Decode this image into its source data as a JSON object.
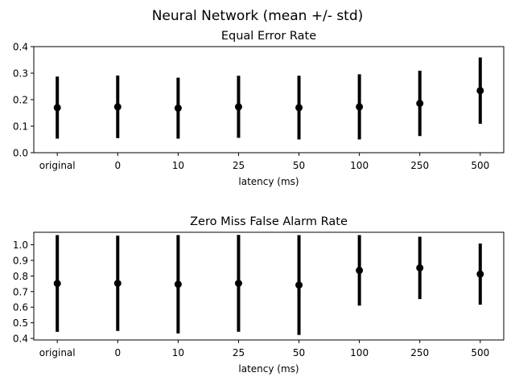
{
  "figure": {
    "suptitle": "Neural Network (mean +/- std)"
  },
  "chart_data": [
    {
      "type": "scatter",
      "title": "Equal Error Rate",
      "xlabel": "latency (ms)",
      "ylabel": "",
      "categories": [
        "original",
        "0",
        "10",
        "25",
        "50",
        "100",
        "250",
        "500"
      ],
      "means": [
        0.17,
        0.173,
        0.168,
        0.173,
        0.17,
        0.173,
        0.186,
        0.234
      ],
      "std": [
        0.117,
        0.118,
        0.115,
        0.117,
        0.12,
        0.123,
        0.123,
        0.125
      ],
      "ylim": [
        0.0,
        0.4
      ],
      "yticks": [
        "0.0",
        "0.1",
        "0.2",
        "0.3",
        "0.4"
      ],
      "grid": false
    },
    {
      "type": "scatter",
      "title": "Zero Miss False Alarm Rate",
      "xlabel": "latency (ms)",
      "ylabel": "",
      "categories": [
        "original",
        "0",
        "10",
        "25",
        "50",
        "100",
        "250",
        "500"
      ],
      "means": [
        0.752,
        0.753,
        0.747,
        0.753,
        0.742,
        0.836,
        0.852,
        0.812
      ],
      "std": [
        0.31,
        0.305,
        0.315,
        0.31,
        0.32,
        0.226,
        0.2,
        0.196
      ],
      "ylim": [
        0.39,
        1.08
      ],
      "yticks": [
        "0.4",
        "0.5",
        "0.6",
        "0.7",
        "0.8",
        "0.9",
        "1.0"
      ],
      "grid": false
    }
  ]
}
